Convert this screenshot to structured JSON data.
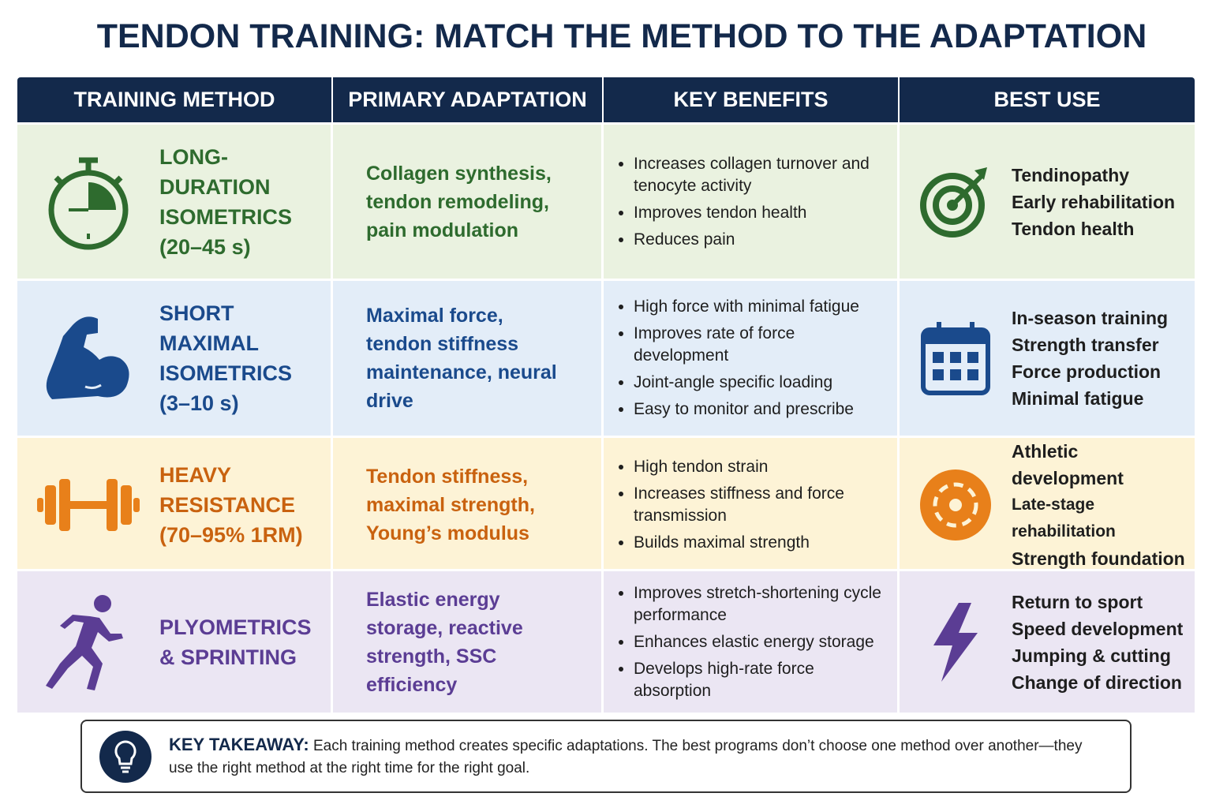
{
  "title": "TENDON TRAINING: MATCH THE METHOD TO THE ADAPTATION",
  "table": {
    "headers": [
      "TRAINING METHOD",
      "PRIMARY ADAPTATION",
      "KEY BENEFITS",
      "BEST USE"
    ],
    "rows": [
      {
        "method": "LONG-DURATION ISOMETRICS",
        "duration": "(20–45 s)",
        "adaptation": "Collagen synthesis, tendon remodeling, pain modulation",
        "benefits": [
          "Increases collagen turnover and tenocyte activity",
          "Improves tendon health",
          "Reduces pain"
        ],
        "best_use": [
          "Tendinopathy",
          "Early rehabilitation",
          "Tendon health"
        ]
      },
      {
        "method": "SHORT MAXIMAL ISOMETRICS",
        "duration": "(3–10 s)",
        "adaptation": "Maximal force, tendon stiffness maintenance, neural drive",
        "benefits": [
          "High force with minimal fatigue",
          "Improves rate of force development",
          "Joint-angle specific loading",
          "Easy to monitor and prescribe"
        ],
        "best_use": [
          "In-season training",
          "Strength transfer",
          "Force production",
          "Minimal fatigue"
        ]
      },
      {
        "method": "HEAVY RESISTANCE",
        "duration": "(70–95% 1RM)",
        "adaptation": "Tendon stiffness, maximal strength, Young’s modulus",
        "benefits": [
          "High tendon strain",
          "Increases stiffness and force transmission",
          "Builds maximal strength"
        ],
        "best_use": [
          "Athletic development",
          "Late-stage rehabilitation",
          "Strength foundation"
        ]
      },
      {
        "method": "PLYOMETRICS & SPRINTING",
        "adaptation": "Elastic energy storage, reactive strength, SSC efficiency",
        "benefits": [
          "Improves stretch-shortening cycle performance",
          "Enhances elastic energy storage",
          "Develops high-rate force absorption"
        ],
        "best_use": [
          "Return to sport",
          "Speed development",
          "Jumping & cutting",
          "Change of direction"
        ]
      }
    ]
  },
  "takeaway": {
    "label": "KEY TAKEAWAY:",
    "text": "Each training method creates specific adaptations. The best programs don’t choose one method over another—they use the right method at the right time for the right goal."
  }
}
